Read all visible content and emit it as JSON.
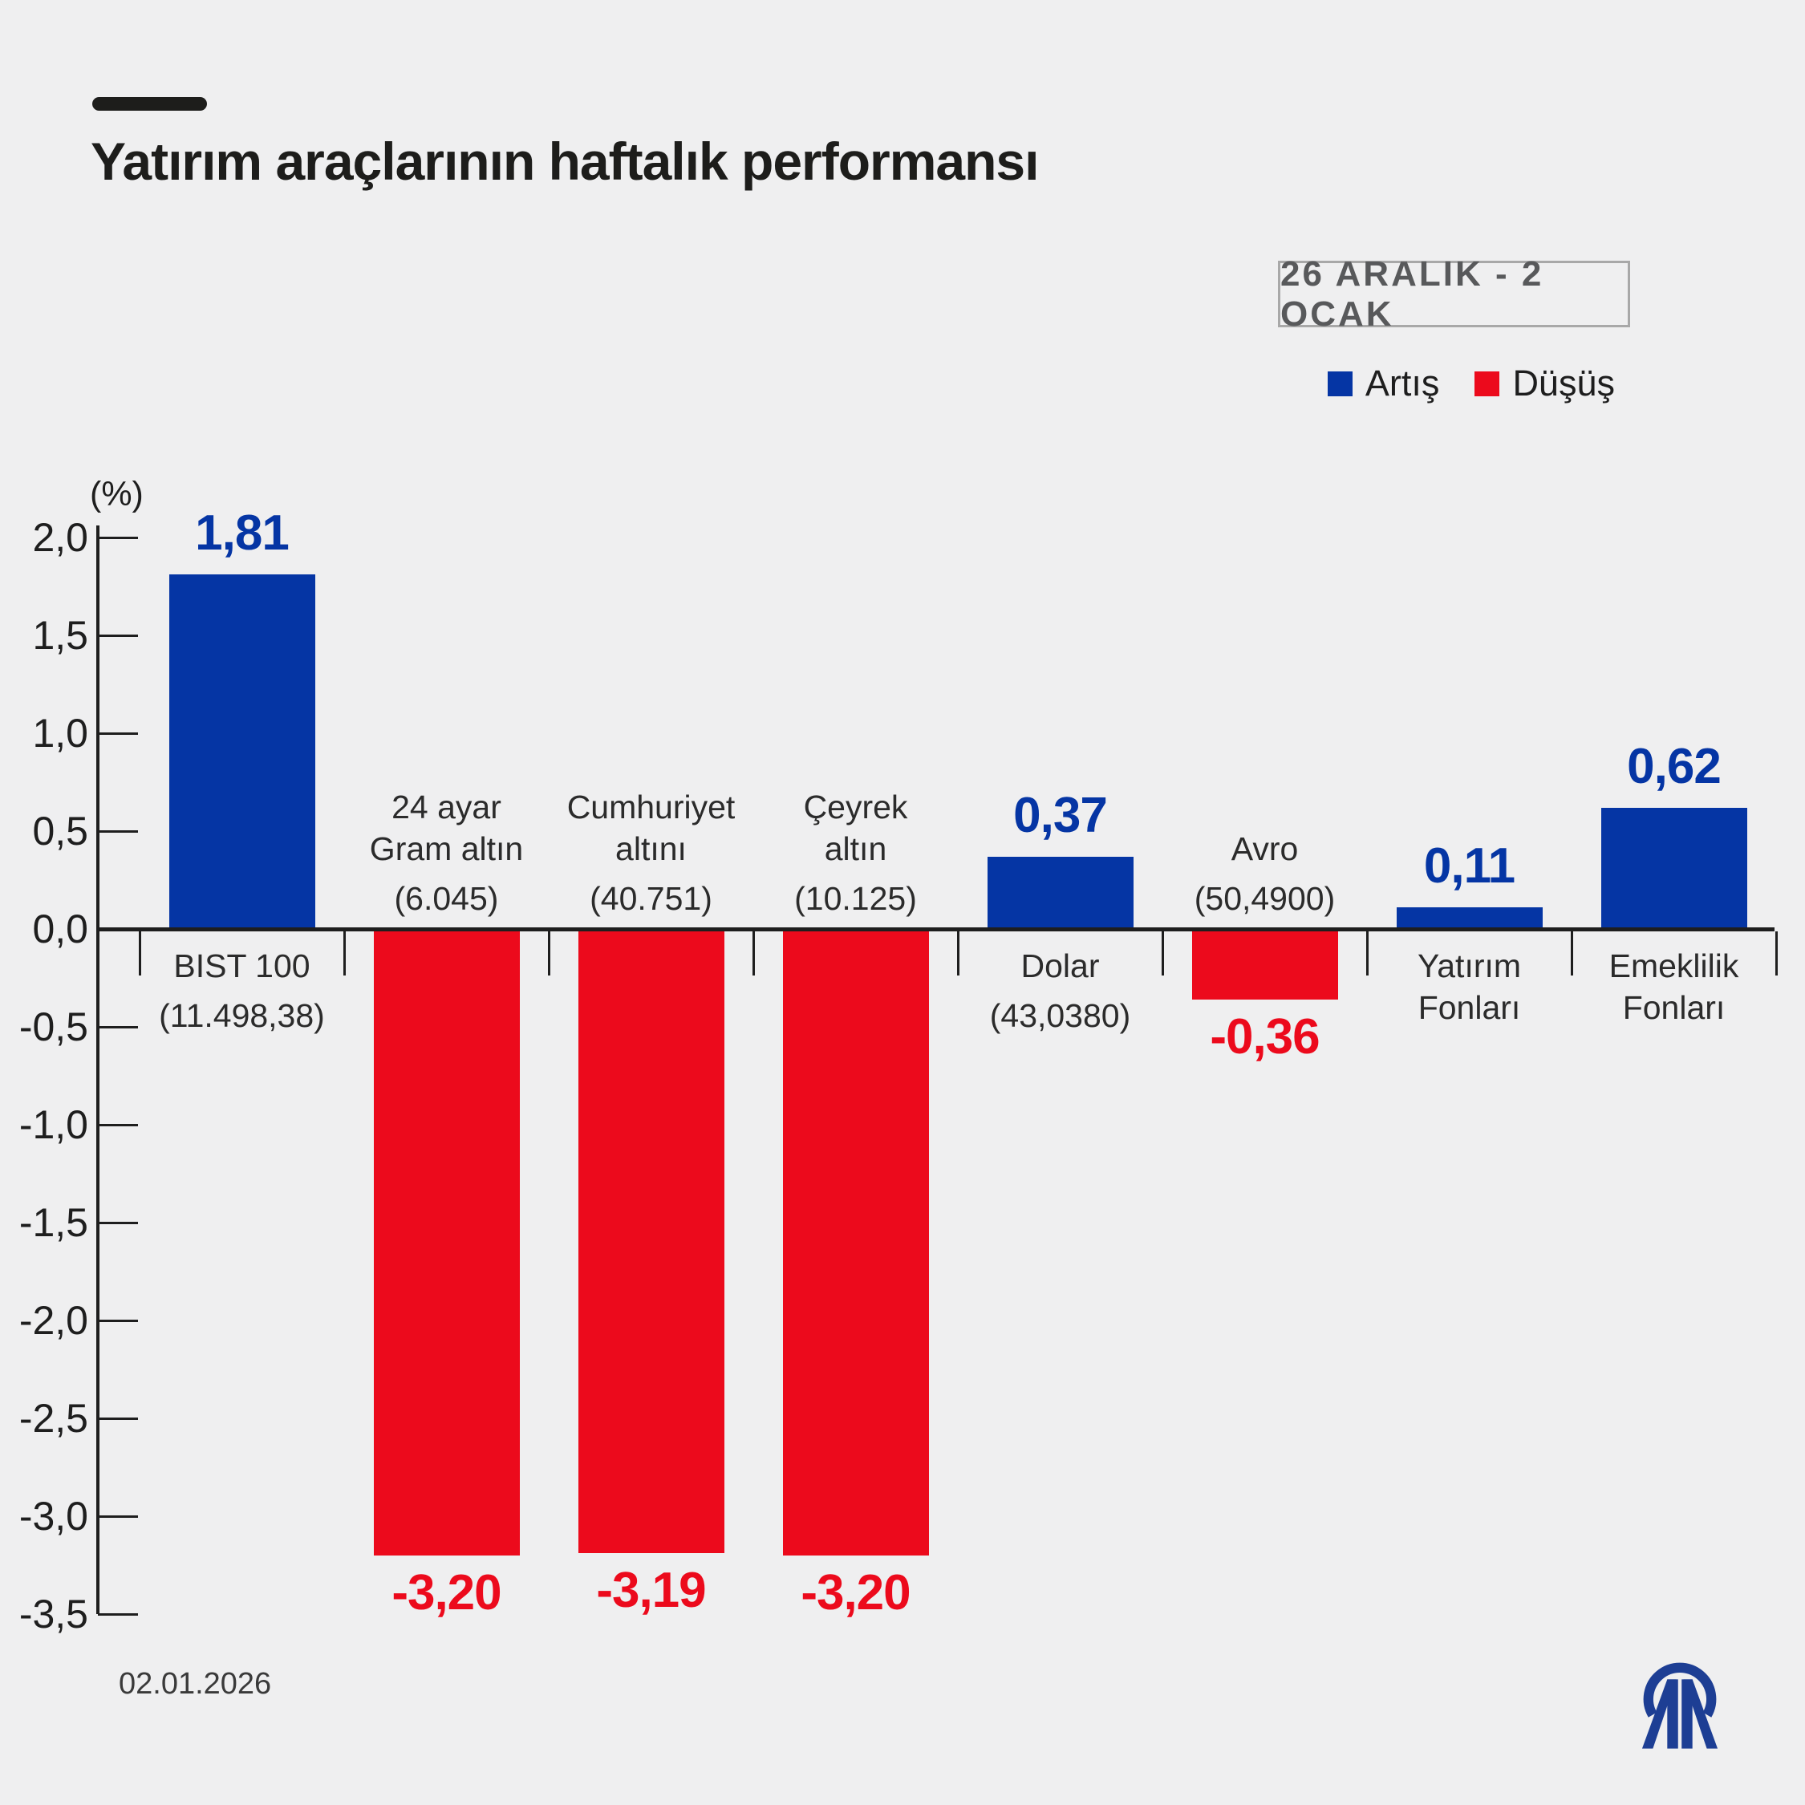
{
  "colors": {
    "background": "#efeff0",
    "up": "#0535a4",
    "down": "#ec0a1c",
    "axis": "#1e1e1e",
    "badge_text": "#58595b",
    "logo_blue": "#1d3e94"
  },
  "header": {
    "title": "Yatırım araçlarının haftalık performansı",
    "period_badge": "26 ARALIK - 2 OCAK"
  },
  "legend": [
    {
      "label": "Artış",
      "color": "#0535a4"
    },
    {
      "label": "Düşüş",
      "color": "#ec0a1c"
    }
  ],
  "footer": {
    "date": "02.01.2026",
    "logo_name": "anadolu-agency-aa-logo"
  },
  "chart_data": {
    "type": "bar",
    "title": "Yatırım araçlarının haftalık performansı",
    "period": "26 ARALIK - 2 OCAK",
    "unit_label": "(%)",
    "ylim": [
      -3.5,
      2.0
    ],
    "grid": false,
    "legend_position": "top-right",
    "y_axis": {
      "tick_values": [
        2.0,
        1.5,
        1.0,
        0.5,
        0.0,
        -0.5,
        -1.0,
        -1.5,
        -2.0,
        -2.5,
        -3.0,
        -3.5
      ],
      "tick_labels": [
        "2,0",
        "1,5",
        "1,0",
        "0,5",
        "0,0",
        "-0,5",
        "-1,0",
        "-1,5",
        "-2,0",
        "-2,5",
        "-3,0",
        "-3,5"
      ]
    },
    "categories": [
      "BIST 100 (11.498,38)",
      "24 ayar Gram altın (6.045)",
      "Cumhuriyet altını (40.751)",
      "Çeyrek altın (10.125)",
      "Dolar (43,0380)",
      "Avro (50,4900)",
      "Yatırım Fonları",
      "Emeklilik Fonları"
    ],
    "values": [
      1.81,
      -3.2,
      -3.19,
      -3.2,
      0.37,
      -0.36,
      0.11,
      0.62
    ],
    "bars": [
      {
        "name_lines": [
          "BIST 100"
        ],
        "sub": "(11.498,38)",
        "value": 1.81,
        "value_label": "1,81",
        "direction": "up",
        "category_side": "below"
      },
      {
        "name_lines": [
          "24 ayar",
          "Gram altın"
        ],
        "sub": "(6.045)",
        "value": -3.2,
        "value_label": "-3,20",
        "direction": "down",
        "category_side": "above"
      },
      {
        "name_lines": [
          "Cumhuriyet",
          "altını"
        ],
        "sub": "(40.751)",
        "value": -3.19,
        "value_label": "-3,19",
        "direction": "down",
        "category_side": "above"
      },
      {
        "name_lines": [
          "Çeyrek",
          "altın"
        ],
        "sub": "(10.125)",
        "value": -3.2,
        "value_label": "-3,20",
        "direction": "down",
        "category_side": "above"
      },
      {
        "name_lines": [
          "Dolar"
        ],
        "sub": "(43,0380)",
        "value": 0.37,
        "value_label": "0,37",
        "direction": "up",
        "category_side": "below"
      },
      {
        "name_lines": [
          "Avro"
        ],
        "sub": "(50,4900)",
        "value": -0.36,
        "value_label": "-0,36",
        "direction": "down",
        "category_side": "above"
      },
      {
        "name_lines": [
          "Yatırım",
          "Fonları"
        ],
        "sub": null,
        "value": 0.11,
        "value_label": "0,11",
        "direction": "up",
        "category_side": "below"
      },
      {
        "name_lines": [
          "Emeklilik",
          "Fonları"
        ],
        "sub": null,
        "value": 0.62,
        "value_label": "0,62",
        "direction": "up",
        "category_side": "below"
      }
    ]
  }
}
